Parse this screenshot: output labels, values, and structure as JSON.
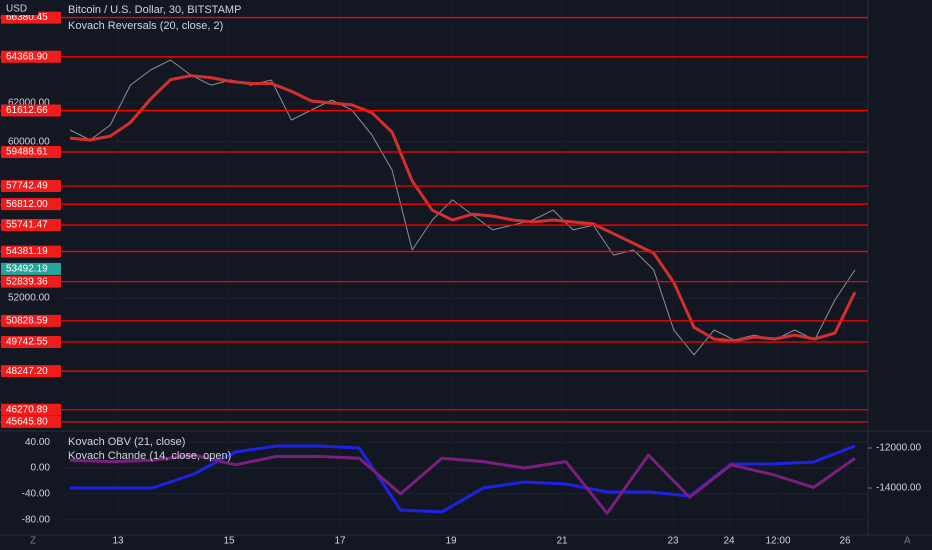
{
  "header": {
    "currency": "USD",
    "title": "Bitcoin / U.S. Dollar, 30, BITSTAMP",
    "indicator": "Kovach Reversals (20, close, 2)"
  },
  "price_pane": {
    "ylim": [
      45231,
      66769
    ],
    "yticks": [
      {
        "value": 52000,
        "label": "52000.00"
      },
      {
        "value": 60000,
        "label": "60000.00"
      },
      {
        "value": 62000,
        "label": "62000.00"
      }
    ],
    "levels": [
      {
        "value": 66380.45,
        "label": "66380.45"
      },
      {
        "value": 64368.9,
        "label": "64368.90"
      },
      {
        "value": 61612.66,
        "label": "61612.66"
      },
      {
        "value": 59488.61,
        "label": "59488.61"
      },
      {
        "value": 57742.49,
        "label": "57742.49"
      },
      {
        "value": 56812,
        "label": "56812.00"
      },
      {
        "value": 55741.47,
        "label": "55741.47"
      },
      {
        "value": 54381.19,
        "label": "54381.19"
      },
      {
        "value": 52839.36,
        "label": "52839.36"
      },
      {
        "value": 50828.59,
        "label": "50828.59"
      },
      {
        "value": 49742.55,
        "label": "49742.55"
      },
      {
        "value": 48247.2,
        "label": "48247.20"
      },
      {
        "value": 46270.89,
        "label": "46270.89"
      },
      {
        "value": 45645.8,
        "label": "45645.80"
      }
    ],
    "current": {
      "value": 53492.19,
      "label": "53492.19"
    },
    "price": [
      60615,
      60100,
      60870,
      62920,
      63690,
      64200,
      63430,
      62920,
      63180,
      62920,
      63180,
      61130,
      61640,
      62150,
      61640,
      60360,
      58560,
      54460,
      56000,
      57030,
      56260,
      55490,
      55740,
      56000,
      56510,
      55490,
      55740,
      54200,
      54460,
      53440,
      50360,
      49080,
      50360,
      49850,
      50100,
      49850,
      50360,
      49850,
      51900,
      53440
    ],
    "average": [
      60200,
      60100,
      60300,
      61000,
      62200,
      63200,
      63400,
      63300,
      63100,
      63000,
      63000,
      62600,
      62100,
      62000,
      61900,
      61500,
      60500,
      58000,
      56500,
      56000,
      56300,
      56200,
      56000,
      55900,
      56000,
      55900,
      55800,
      55300,
      54800,
      54300,
      52800,
      50500,
      49900,
      49800,
      50000,
      49900,
      50100,
      49900,
      50200,
      52300
    ]
  },
  "lower_pane": {
    "ylim": [
      -103.5,
      55.7
    ],
    "yticks": [
      {
        "value": 40,
        "label": "40.00"
      },
      {
        "value": 0,
        "label": "0.00"
      },
      {
        "value": -40,
        "label": "-40.00"
      },
      {
        "value": -80,
        "label": "-80.00"
      }
    ],
    "y2lim": [
      -16350,
      -11200
    ],
    "y2ticks": [
      {
        "value": -12000,
        "label": "-12000.00"
      },
      {
        "value": -14000,
        "label": "-14000.00"
      }
    ],
    "series": [
      {
        "name": "Kovach OBV (21, close)",
        "color": "#1e22e6",
        "axis": "y2",
        "values": [
          -14000,
          -14000,
          -14000,
          -13300,
          -12200,
          -11900,
          -11900,
          -12000,
          -15100,
          -15200,
          -14000,
          -13700,
          -13800,
          -14200,
          -14200,
          -14400,
          -12800,
          -12800,
          -12700,
          -11900
        ]
      },
      {
        "name": "Kovach Chande (14, close, open)",
        "color": "#7b1f7f",
        "values": [
          12,
          10,
          12,
          20,
          5,
          18,
          18,
          15,
          -40,
          15,
          10,
          0,
          10,
          -70,
          20,
          -45,
          5,
          -10,
          -30,
          15
        ]
      }
    ]
  },
  "x_axis": {
    "labels": [
      "13",
      "15",
      "17",
      "19",
      "21",
      "23",
      "24",
      "12:00",
      "26"
    ]
  },
  "footer": {
    "left": "Z",
    "right": "A"
  }
}
